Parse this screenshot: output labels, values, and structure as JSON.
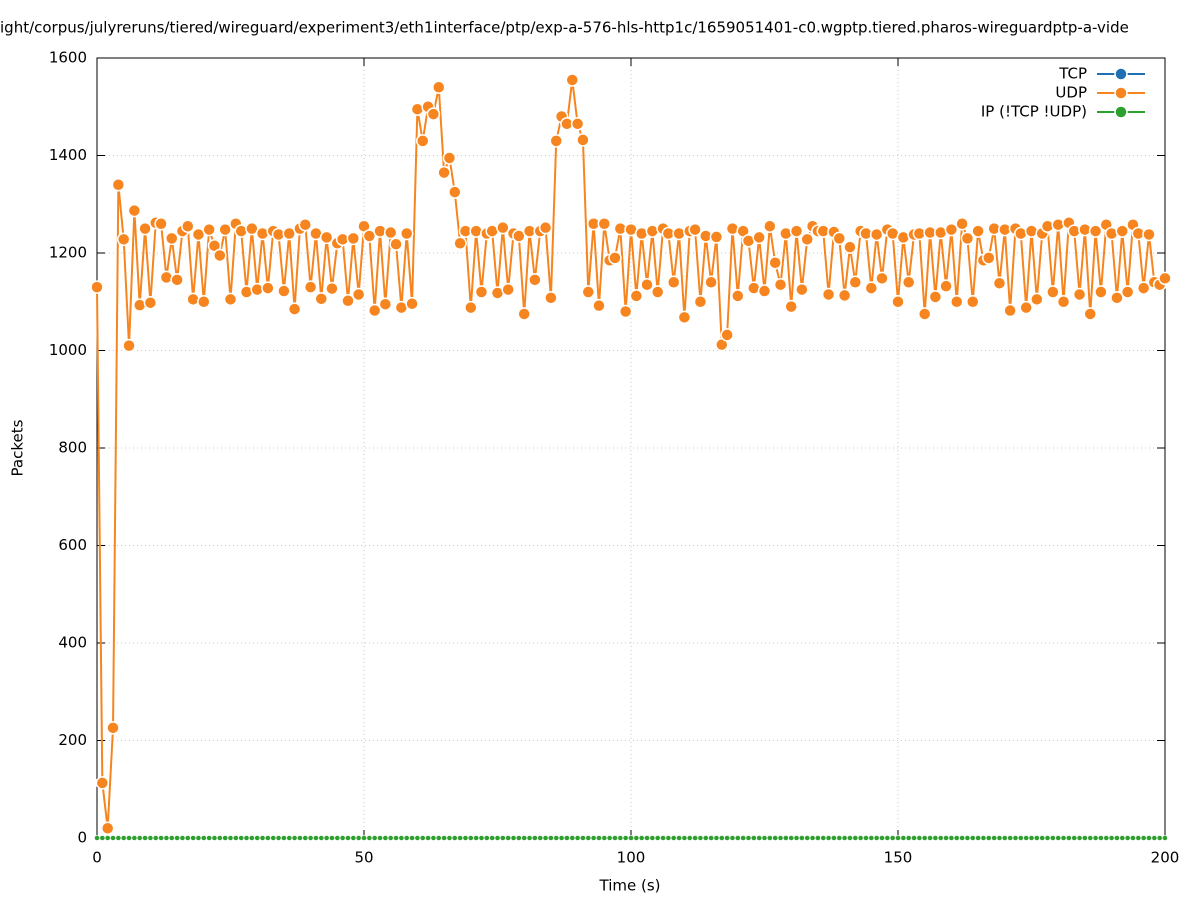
{
  "chart_data": {
    "type": "line",
    "title": "ight/corpus/julyreruns/tiered/wireguard/experiment3/eth1interface/ptp/exp-a-576-hls-http1c/1659051401-c0.wgptp.tiered.pharos-wireguardptp-a-vide",
    "x_label": "Time (s)",
    "y_label": "Packets",
    "xlim": [
      0,
      200
    ],
    "xticks": [
      0,
      50,
      100,
      150,
      200
    ],
    "ylim": [
      0,
      1600
    ],
    "yticks": [
      0,
      200,
      400,
      600,
      800,
      1000,
      1200,
      1400,
      1600
    ],
    "grid": true,
    "legend": "top-right",
    "x": [
      0,
      1,
      2,
      3,
      4,
      5,
      6,
      7,
      8,
      9,
      10,
      11,
      12,
      13,
      14,
      15,
      16,
      17,
      18,
      19,
      20,
      21,
      22,
      23,
      24,
      25,
      26,
      27,
      28,
      29,
      30,
      31,
      32,
      33,
      34,
      35,
      36,
      37,
      38,
      39,
      40,
      41,
      42,
      43,
      44,
      45,
      46,
      47,
      48,
      49,
      50,
      51,
      52,
      53,
      54,
      55,
      56,
      57,
      58,
      59,
      60,
      61,
      62,
      63,
      64,
      65,
      66,
      67,
      68,
      69,
      70,
      71,
      72,
      73,
      74,
      75,
      76,
      77,
      78,
      79,
      80,
      81,
      82,
      83,
      84,
      85,
      86,
      87,
      88,
      89,
      90,
      91,
      92,
      93,
      94,
      95,
      96,
      97,
      98,
      99,
      100,
      101,
      102,
      103,
      104,
      105,
      106,
      107,
      108,
      109,
      110,
      111,
      112,
      113,
      114,
      115,
      116,
      117,
      118,
      119,
      120,
      121,
      122,
      123,
      124,
      125,
      126,
      127,
      128,
      129,
      130,
      131,
      132,
      133,
      134,
      135,
      136,
      137,
      138,
      139,
      140,
      141,
      142,
      143,
      144,
      145,
      146,
      147,
      148,
      149,
      150,
      151,
      152,
      153,
      154,
      155,
      156,
      157,
      158,
      159,
      160,
      161,
      162,
      163,
      164,
      165,
      166,
      167,
      168,
      169,
      170,
      171,
      172,
      173,
      174,
      175,
      176,
      177,
      178,
      179,
      180,
      181,
      182,
      183,
      184,
      185,
      186,
      187,
      188,
      189,
      190,
      191,
      192,
      193,
      194,
      195,
      196,
      197,
      198,
      199,
      200
    ],
    "series": [
      {
        "name": "TCP",
        "color": "#1f6fb5",
        "values": [
          0,
          0,
          0,
          0,
          0,
          0,
          0,
          0,
          0,
          0,
          0,
          0,
          0,
          0,
          0,
          0,
          0,
          0,
          0,
          0,
          0,
          0,
          0,
          0,
          0,
          0,
          0,
          0,
          0,
          0,
          0,
          0,
          0,
          0,
          0,
          0,
          0,
          0,
          0,
          0,
          0,
          0,
          0,
          0,
          0,
          0,
          0,
          0,
          0,
          0,
          0,
          0,
          0,
          0,
          0,
          0,
          0,
          0,
          0,
          0,
          0,
          0,
          0,
          0,
          0,
          0,
          0,
          0,
          0,
          0,
          0,
          0,
          0,
          0,
          0,
          0,
          0,
          0,
          0,
          0,
          0,
          0,
          0,
          0,
          0,
          0,
          0,
          0,
          0,
          0,
          0,
          0,
          0,
          0,
          0,
          0,
          0,
          0,
          0,
          0,
          0,
          0,
          0,
          0,
          0,
          0,
          0,
          0,
          0,
          0,
          0,
          0,
          0,
          0,
          0,
          0,
          0,
          0,
          0,
          0,
          0,
          0,
          0,
          0,
          0,
          0,
          0,
          0,
          0,
          0,
          0,
          0,
          0,
          0,
          0,
          0,
          0,
          0,
          0,
          0,
          0,
          0,
          0,
          0,
          0,
          0,
          0,
          0,
          0,
          0,
          0,
          0,
          0,
          0,
          0,
          0,
          0,
          0,
          0,
          0,
          0,
          0,
          0,
          0,
          0,
          0,
          0,
          0,
          0,
          0,
          0,
          0,
          0,
          0,
          0,
          0,
          0,
          0,
          0,
          0,
          0,
          0,
          0,
          0,
          0,
          0,
          0,
          0,
          0,
          0,
          0,
          0,
          0,
          0,
          0,
          0,
          0,
          0,
          0,
          0,
          0
        ]
      },
      {
        "name": "UDP",
        "color": "#f6851f",
        "values": [
          1130,
          113,
          20,
          226,
          1340,
          1228,
          1010,
          1287,
          1093,
          1250,
          1098,
          1262,
          1260,
          1150,
          1230,
          1145,
          1245,
          1255,
          1105,
          1238,
          1100,
          1248,
          1215,
          1195,
          1248,
          1105,
          1260,
          1245,
          1120,
          1250,
          1125,
          1240,
          1128,
          1245,
          1238,
          1122,
          1240,
          1085,
          1250,
          1258,
          1130,
          1240,
          1106,
          1232,
          1127,
          1220,
          1228,
          1102,
          1230,
          1115,
          1255,
          1235,
          1082,
          1245,
          1095,
          1242,
          1218,
          1088,
          1240,
          1096,
          1495,
          1430,
          1500,
          1485,
          1540,
          1365,
          1395,
          1325,
          1220,
          1245,
          1088,
          1245,
          1120,
          1240,
          1245,
          1118,
          1252,
          1125,
          1240,
          1235,
          1075,
          1245,
          1145,
          1245,
          1252,
          1108,
          1430,
          1480,
          1465,
          1555,
          1465,
          1432,
          1120,
          1260,
          1092,
          1260,
          1185,
          1190,
          1250,
          1080,
          1248,
          1112,
          1240,
          1135,
          1245,
          1120,
          1250,
          1240,
          1140,
          1240,
          1068,
          1245,
          1248,
          1100,
          1235,
          1140,
          1233,
          1012,
          1032,
          1250,
          1112,
          1245,
          1225,
          1128,
          1232,
          1122,
          1255,
          1180,
          1135,
          1240,
          1090,
          1245,
          1125,
          1228,
          1255,
          1245,
          1245,
          1115,
          1243,
          1230,
          1113,
          1212,
          1140,
          1245,
          1240,
          1128,
          1238,
          1148,
          1248,
          1240,
          1100,
          1232,
          1140,
          1238,
          1240,
          1075,
          1242,
          1110,
          1242,
          1132,
          1248,
          1100,
          1260,
          1230,
          1100,
          1245,
          1185,
          1190,
          1250,
          1138,
          1248,
          1082,
          1250,
          1240,
          1088,
          1245,
          1105,
          1240,
          1255,
          1120,
          1258,
          1100,
          1262,
          1245,
          1115,
          1248,
          1075,
          1245,
          1120,
          1258,
          1240,
          1108,
          1245,
          1120,
          1258,
          1240,
          1128,
          1238,
          1140,
          1135,
          1148
        ]
      },
      {
        "name": "IP (!TCP  !UDP)",
        "color": "#2ca02c",
        "values": [
          0,
          0,
          0,
          0,
          0,
          0,
          0,
          0,
          0,
          0,
          0,
          0,
          0,
          0,
          0,
          0,
          0,
          0,
          0,
          0,
          0,
          0,
          0,
          0,
          0,
          0,
          0,
          0,
          0,
          0,
          0,
          0,
          0,
          0,
          0,
          0,
          0,
          0,
          0,
          0,
          0,
          0,
          0,
          0,
          0,
          0,
          0,
          0,
          0,
          0,
          0,
          0,
          0,
          0,
          0,
          0,
          0,
          0,
          0,
          0,
          0,
          0,
          0,
          0,
          0,
          0,
          0,
          0,
          0,
          0,
          0,
          0,
          0,
          0,
          0,
          0,
          0,
          0,
          0,
          0,
          0,
          0,
          0,
          0,
          0,
          0,
          0,
          0,
          0,
          0,
          0,
          0,
          0,
          0,
          0,
          0,
          0,
          0,
          0,
          0,
          0,
          0,
          0,
          0,
          0,
          0,
          0,
          0,
          0,
          0,
          0,
          0,
          0,
          0,
          0,
          0,
          0,
          0,
          0,
          0,
          0,
          0,
          0,
          0,
          0,
          0,
          0,
          0,
          0,
          0,
          0,
          0,
          0,
          0,
          0,
          0,
          0,
          0,
          0,
          0,
          0,
          0,
          0,
          0,
          0,
          0,
          0,
          0,
          0,
          0,
          0,
          0,
          0,
          0,
          0,
          0,
          0,
          0,
          0,
          0,
          0,
          0,
          0,
          0,
          0,
          0,
          0,
          0,
          0,
          0,
          0,
          0,
          0,
          0,
          0,
          0,
          0,
          0,
          0,
          0,
          0,
          0,
          0,
          0,
          0,
          0,
          0,
          0,
          0,
          0,
          0,
          0,
          0,
          0,
          0,
          0,
          0,
          0,
          0,
          0,
          0
        ]
      }
    ]
  }
}
